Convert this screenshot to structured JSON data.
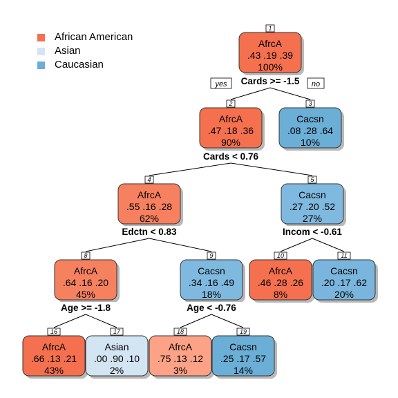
{
  "legend": [
    {
      "label": "African American",
      "color": "#f4704f"
    },
    {
      "label": "Asian",
      "color": "#d3e4f3"
    },
    {
      "label": "Caucasian",
      "color": "#6baed6"
    }
  ],
  "nodes": [
    {
      "id": "1",
      "label": "AfrcA",
      "probs": ".43 .19 .39",
      "pct": "100%",
      "fill": "#f4704f"
    },
    {
      "id": "2",
      "label": "AfrcA",
      "probs": ".47 .18 .36",
      "pct": "90%",
      "fill": "#f4704f"
    },
    {
      "id": "3",
      "label": "Cacsn",
      "probs": ".08 .28 .64",
      "pct": "10%",
      "fill": "#6baed6"
    },
    {
      "id": "4",
      "label": "AfrcA",
      "probs": ".55 .16 .28",
      "pct": "62%",
      "fill": "#f6805f"
    },
    {
      "id": "5",
      "label": "Cacsn",
      "probs": ".27 .20 .52",
      "pct": "27%",
      "fill": "#80b9df"
    },
    {
      "id": "8",
      "label": "AfrcA",
      "probs": ".64 .16 .20",
      "pct": "45%",
      "fill": "#f6815f"
    },
    {
      "id": "9",
      "label": "Cacsn",
      "probs": ".34 .16 .49",
      "pct": "18%",
      "fill": "#80b9df"
    },
    {
      "id": "10",
      "label": "AfrcA",
      "probs": ".46 .28 .26",
      "pct": "8%",
      "fill": "#f4704f"
    },
    {
      "id": "11",
      "label": "Cacsn",
      "probs": ".20 .17 .62",
      "pct": "20%",
      "fill": "#79b5dc"
    },
    {
      "id": "16",
      "label": "AfrcA",
      "probs": ".66 .13 .21",
      "pct": "43%",
      "fill": "#f4704f"
    },
    {
      "id": "17",
      "label": "Asian",
      "probs": ".00 .90 .10",
      "pct": "2%",
      "fill": "#d3e4f3"
    },
    {
      "id": "18",
      "label": "AfrcA",
      "probs": ".75 .13 .12",
      "pct": "3%",
      "fill": "#fca287"
    },
    {
      "id": "19",
      "label": "Cacsn",
      "probs": ".25 .17 .57",
      "pct": "14%",
      "fill": "#6baed6"
    }
  ],
  "splits": [
    {
      "id": "s1",
      "text": "Cards >= -1.5"
    },
    {
      "id": "s2",
      "text": "Cards < 0.76"
    },
    {
      "id": "s4",
      "text": "Edctn < 0.83"
    },
    {
      "id": "s5",
      "text": "Incom < -0.61"
    },
    {
      "id": "s8",
      "text": "Age >= -1.8"
    },
    {
      "id": "s9",
      "text": "Age < -0.76"
    }
  ],
  "branch_labels": {
    "yes": "yes",
    "no": "no"
  }
}
